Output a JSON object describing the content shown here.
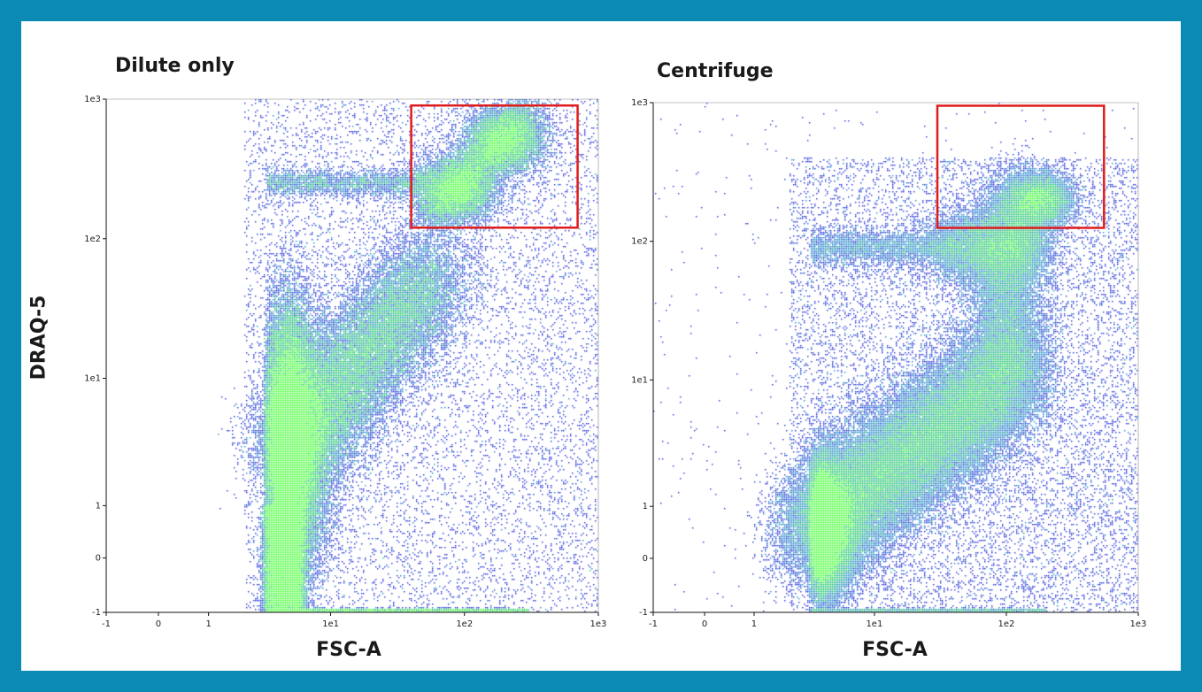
{
  "chart_data": [
    {
      "type": "scatter",
      "title": "Dilute only",
      "xlabel": "FSC-A",
      "ylabel": "DRAQ-5",
      "x_scale": "biexponential",
      "y_scale": "biexponential",
      "x_ticks": [
        "-1",
        "0",
        "1",
        "1e1",
        "1e2",
        "1e3"
      ],
      "y_ticks": [
        "-1",
        "0",
        "1",
        "1e1",
        "1e2",
        "1e3"
      ],
      "xlim": [
        -1,
        1000
      ],
      "ylim": [
        -1,
        1000
      ],
      "density_colors": [
        "#1f2fd6",
        "#1e88c8",
        "#19c26a",
        "#3aff2a"
      ],
      "gate": {
        "x": [
          40,
          700
        ],
        "y": [
          120,
          900
        ],
        "color": "#e01b1b"
      },
      "populations": [
        {
          "name": "",
          "x_center": 5,
          "y_center": 2.5,
          "density": "high"
        },
        {
          "name": "",
          "x_center": 130,
          "y_center": 400,
          "density": "high"
        }
      ]
    },
    {
      "type": "scatter",
      "title": "Centrifuge",
      "xlabel": "FSC-A",
      "ylabel": "",
      "x_scale": "biexponential",
      "y_scale": "biexponential",
      "x_ticks": [
        "-1",
        "0",
        "1",
        "1e1",
        "1e2",
        "1e3"
      ],
      "y_ticks": [
        "-1",
        "0",
        "1",
        "1e1",
        "1e2",
        "1e3"
      ],
      "xlim": [
        -1,
        1000
      ],
      "ylim": [
        -1,
        1000
      ],
      "density_colors": [
        "#1f2fd6",
        "#1e88c8",
        "#19c26a",
        "#3aff2a"
      ],
      "gate": {
        "x": [
          30,
          550
        ],
        "y": [
          125,
          950
        ],
        "color": "#e01b1b"
      },
      "populations": [
        {
          "name": "",
          "x_center": 3,
          "y_center": 0.8,
          "density": "high"
        },
        {
          "name": "",
          "x_center": 100,
          "y_center": 120,
          "density": "high"
        }
      ]
    }
  ]
}
